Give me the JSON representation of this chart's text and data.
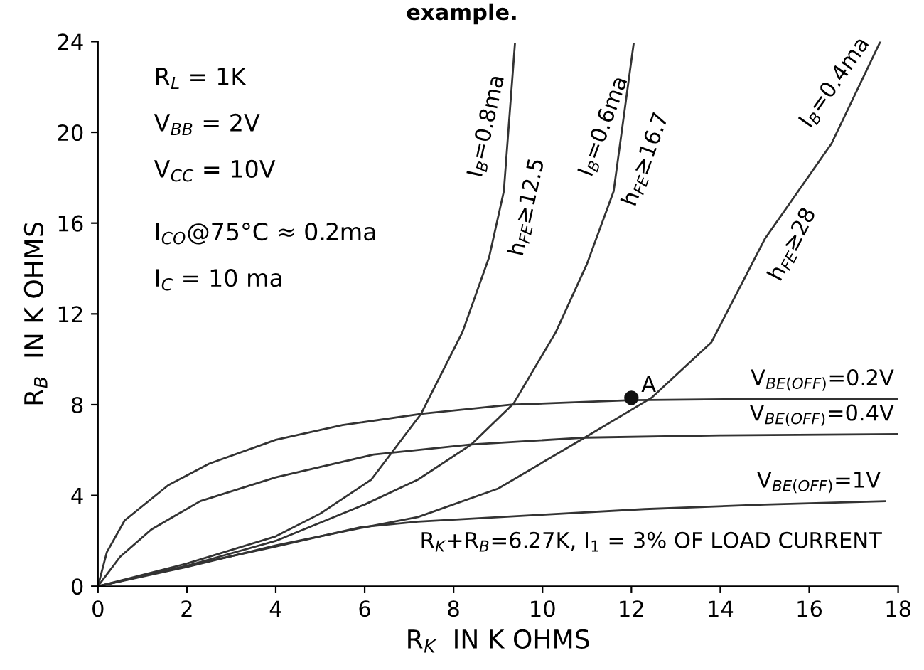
{
  "chart_data": {
    "type": "line",
    "xlabel": "R$_{K}$  IN K OHMS",
    "ylabel": "R$_{B}$  IN K OHMS",
    "xlim": [
      0,
      18
    ],
    "ylim": [
      0,
      24
    ],
    "xticks": [
      0,
      2,
      4,
      6,
      8,
      10,
      12,
      14,
      16,
      18
    ],
    "yticks": [
      0,
      4,
      8,
      12,
      16,
      20,
      24
    ],
    "grid": false,
    "marker": "none",
    "line_style": "solid",
    "series": [
      {
        "name": "I$_{B}$=0.8ma",
        "color": "#333333",
        "x": [
          0,
          1,
          2,
          4,
          5,
          6.15,
          7.27,
          8.2,
          8.8,
          9.13,
          9.38
        ],
        "values": [
          0,
          0.5,
          1.0,
          2.2,
          3.2,
          4.7,
          7.6,
          11.2,
          14.5,
          17.4,
          23.9
        ]
      },
      {
        "name": "I$_{B}$=0.6ma",
        "color": "#333333",
        "x": [
          0,
          2,
          4,
          6,
          7.2,
          8.4,
          9.35,
          10.3,
          11.0,
          11.6,
          12.05
        ],
        "values": [
          0,
          0.9,
          2.0,
          3.6,
          4.7,
          6.25,
          8.05,
          11.2,
          14.2,
          17.4,
          23.9
        ]
      },
      {
        "name": "I$_{B}$=0.4ma",
        "color": "#333333",
        "x": [
          0,
          2,
          4,
          6,
          7.2,
          9,
          10.95,
          12.45,
          13.8,
          15.0,
          16.5,
          17.6
        ],
        "values": [
          0,
          0.85,
          1.8,
          2.6,
          3.05,
          4.3,
          6.55,
          8.3,
          10.75,
          15.3,
          19.5,
          24
        ]
      },
      {
        "name": "V$_{BE(OFF)}$=0.2V",
        "color": "#333333",
        "x": [
          0,
          0.2,
          0.6,
          1.58,
          2.5,
          4,
          5.5,
          7.3,
          9.3,
          12,
          15,
          18
        ],
        "values": [
          0,
          1.5,
          2.9,
          4.45,
          5.4,
          6.45,
          7.1,
          7.6,
          8.0,
          8.2,
          8.25,
          8.25
        ]
      },
      {
        "name": "V$_{BE(OFF)}$=0.4V",
        "color": "#333333",
        "x": [
          0,
          0.5,
          1.2,
          2.3,
          4,
          6.2,
          8.4,
          11,
          14,
          18
        ],
        "values": [
          0,
          1.3,
          2.5,
          3.75,
          4.8,
          5.8,
          6.25,
          6.55,
          6.65,
          6.7
        ]
      },
      {
        "name": "V$_{BE(OFF)}$=1V",
        "color": "#333333",
        "x": [
          0,
          2,
          4,
          5.9,
          7.2,
          10,
          12.3,
          15,
          17.7
        ],
        "values": [
          0,
          0.9,
          1.75,
          2.6,
          2.85,
          3.15,
          3.4,
          3.6,
          3.75
        ]
      },
      {
        "name": "A",
        "type": "scatter",
        "marker": "circle",
        "color": "#111111",
        "x": [
          12.0
        ],
        "values": [
          8.3
        ]
      }
    ],
    "annotations": [
      "example.",
      "R$_{L}$ = 1K",
      "V$_{BB}$ = 2V",
      "V$_{CC}$ = 10V",
      "I$_{CO}$@75°C ≈ 0.2ma",
      "I$_{C}$ = 10 ma",
      "R$_{K}$+R$_{B}$=6.27K, I$_{1}$ = 3% OF LOAD CURRENT",
      {
        "text": "h$_{FE}$≥12.5",
        "x": 9.13,
        "y": 17.4
      },
      {
        "text": "h$_{FE}$≥16.7",
        "x": 11.8,
        "y": 19.5
      },
      {
        "text": "h$_{FE}$≥28",
        "x": 15.1,
        "y": 15.75
      }
    ]
  }
}
